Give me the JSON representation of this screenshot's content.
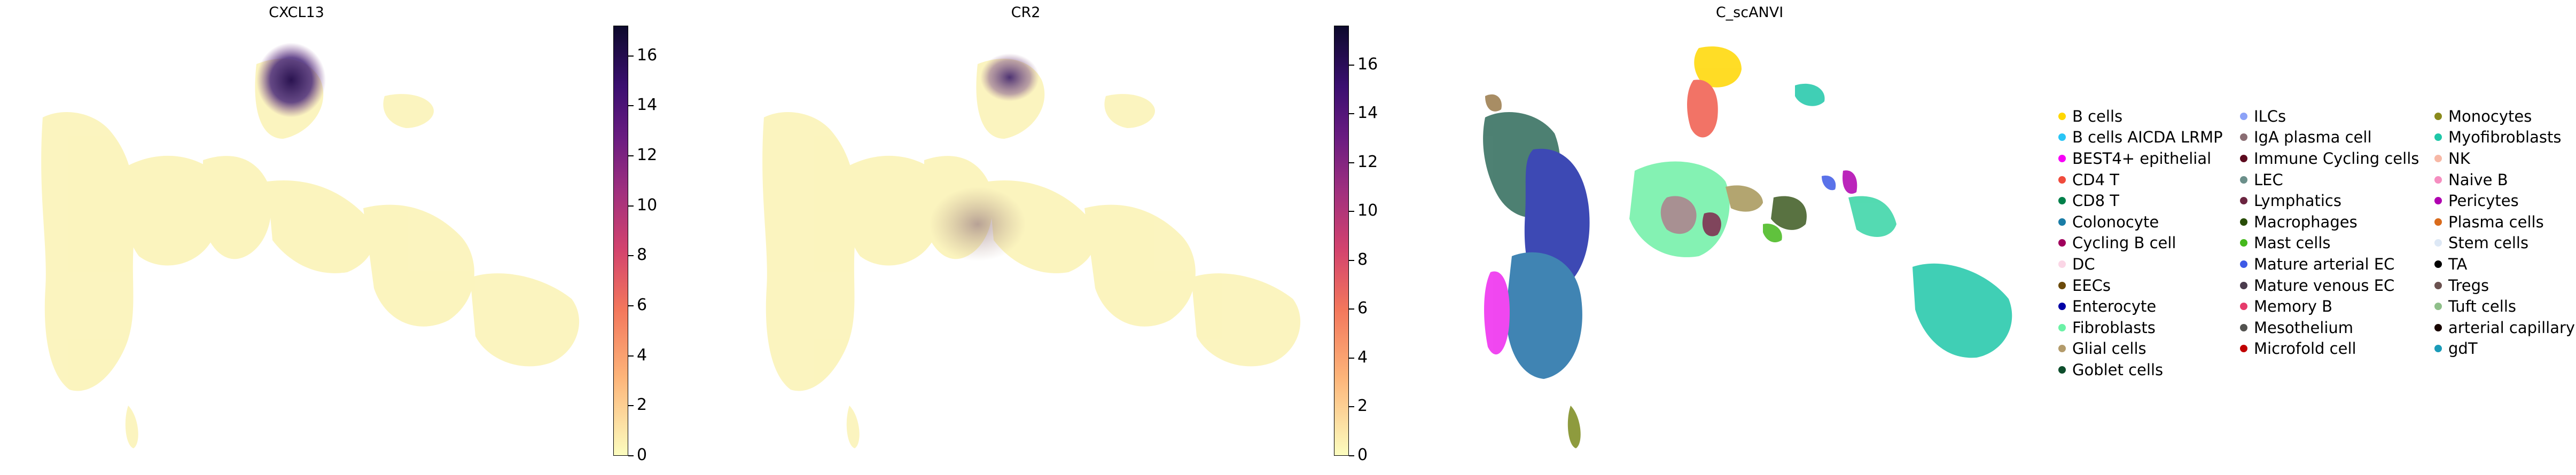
{
  "chart_data": [
    {
      "type": "scatter",
      "title": "CXCL13",
      "colorbar": {
        "min": 0,
        "max": 17.2,
        "ticks": [
          0,
          2,
          4,
          6,
          8,
          10,
          12,
          14,
          16
        ],
        "colormap": "magma_r"
      },
      "grid": false
    },
    {
      "type": "scatter",
      "title": "CR2",
      "colorbar": {
        "min": 0,
        "max": 17.6,
        "ticks": [
          0,
          2,
          4,
          6,
          8,
          10,
          12,
          14,
          16
        ],
        "colormap": "magma_r"
      },
      "grid": false
    },
    {
      "type": "scatter",
      "title": "C_scANVI",
      "grid": false,
      "legend_position": "right",
      "legend": [
        {
          "label": "B cells",
          "color": "#ffd700"
        },
        {
          "label": "B cells AICDA LRMP",
          "color": "#29c5f6"
        },
        {
          "label": "BEST4+ epithelial",
          "color": "#f700f7"
        },
        {
          "label": "CD4 T",
          "color": "#f04b3c"
        },
        {
          "label": "CD8 T",
          "color": "#00804a"
        },
        {
          "label": "Colonocyte",
          "color": "#1a7ca6"
        },
        {
          "label": "Cycling B cell",
          "color": "#a0005c"
        },
        {
          "label": "DC",
          "color": "#fbd6e6"
        },
        {
          "label": "EECs",
          "color": "#6b4a0a"
        },
        {
          "label": "Enterocyte",
          "color": "#0000a5"
        },
        {
          "label": "Fibroblasts",
          "color": "#6bf2a6"
        },
        {
          "label": "Glial cells",
          "color": "#b39b6b"
        },
        {
          "label": "Goblet cells",
          "color": "#0d4d2c"
        },
        {
          "label": "ILCs",
          "color": "#8ca2f7"
        },
        {
          "label": "IgA plasma cell",
          "color": "#8a6d73"
        },
        {
          "label": "Immune Cycling cells",
          "color": "#5c0a1e"
        },
        {
          "label": "LEC",
          "color": "#6b8f8a"
        },
        {
          "label": "Lymphatics",
          "color": "#6b2540"
        },
        {
          "label": "Macrophages",
          "color": "#284d08"
        },
        {
          "label": "Mast cells",
          "color": "#45b81c"
        },
        {
          "label": "Mature arterial EC",
          "color": "#3e5ae6"
        },
        {
          "label": "Mature venous EC",
          "color": "#4a3b4d"
        },
        {
          "label": "Memory B",
          "color": "#e63b6b"
        },
        {
          "label": "Mesothelium",
          "color": "#52524f"
        },
        {
          "label": "Microfold cell",
          "color": "#c00000"
        },
        {
          "label": "Monocytes",
          "color": "#8a8a1c"
        },
        {
          "label": "Myofibroblasts",
          "color": "#1fc7a8"
        },
        {
          "label": "NK",
          "color": "#f7b8a6"
        },
        {
          "label": "Naive B",
          "color": "#f58ec0"
        },
        {
          "label": "Pericytes",
          "color": "#b000b0"
        },
        {
          "label": "Plasma cells",
          "color": "#d96b1c"
        },
        {
          "label": "Stem cells",
          "color": "#dde8f5"
        },
        {
          "label": "TA",
          "color": "#000000"
        },
        {
          "label": "Tregs",
          "color": "#6b5250"
        },
        {
          "label": "Tuft cells",
          "color": "#8fbf8a"
        },
        {
          "label": "arterial capillary",
          "color": "#180500"
        },
        {
          "label": "gdT",
          "color": "#1a9bb8"
        }
      ]
    }
  ]
}
